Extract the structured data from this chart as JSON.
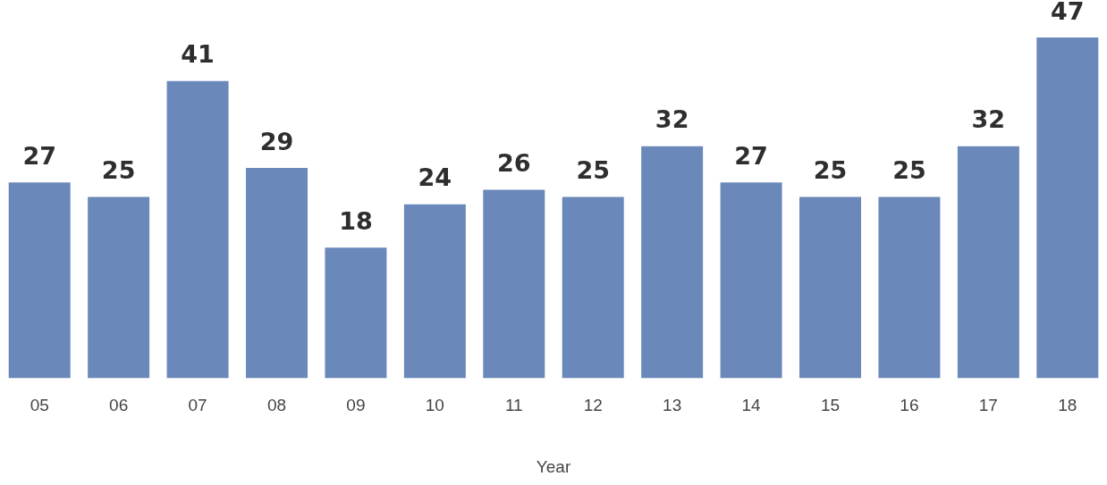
{
  "chart_data": {
    "type": "bar",
    "xlabel": "Year",
    "categories": [
      "05",
      "06",
      "07",
      "08",
      "09",
      "10",
      "11",
      "12",
      "13",
      "14",
      "15",
      "16",
      "17",
      "18"
    ],
    "values": [
      27,
      25,
      41,
      29,
      18,
      24,
      26,
      25,
      32,
      27,
      25,
      25,
      32,
      47
    ],
    "color": "#6a88ba",
    "data_labels": true,
    "grid": false,
    "legend": false
  }
}
